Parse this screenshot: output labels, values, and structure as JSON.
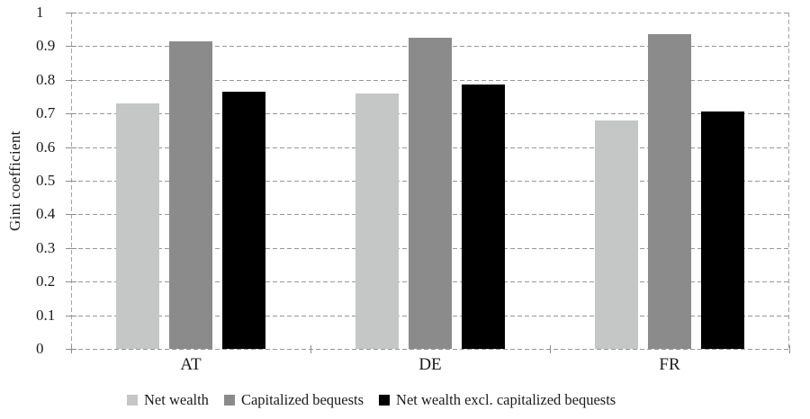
{
  "figure": {
    "background": "#ffffff",
    "text_color": "#1a1a1a",
    "gridline_color": "#979797",
    "axis_line_color": "#a3a3a3",
    "tick_color": "#8c8c8c"
  },
  "chart_data": {
    "type": "bar",
    "title": "",
    "xlabel": "",
    "ylabel": "Gini coefficient",
    "categories": [
      "AT",
      "DE",
      "FR"
    ],
    "series": [
      {
        "name": "Net wealth",
        "color": "#c5c6c6",
        "values": [
          0.73,
          0.76,
          0.68
        ]
      },
      {
        "name": "Capitalized bequests",
        "color": "#8b8b8b",
        "values": [
          0.915,
          0.925,
          0.935
        ]
      },
      {
        "name": "Net wealth excl. capitalized bequests",
        "color": "#000000",
        "values": [
          0.765,
          0.785,
          0.705
        ]
      }
    ],
    "ylim": [
      0,
      1
    ],
    "ytick_step": 0.1,
    "ytick_labels": [
      "0",
      "0.1",
      "0.2",
      "0.3",
      "0.4",
      "0.5",
      "0.6",
      "0.7",
      "0.8",
      "0.9",
      "1"
    ],
    "grid": "horizontal-dashed",
    "plot_border": "dashed",
    "legend_position": "bottom"
  }
}
